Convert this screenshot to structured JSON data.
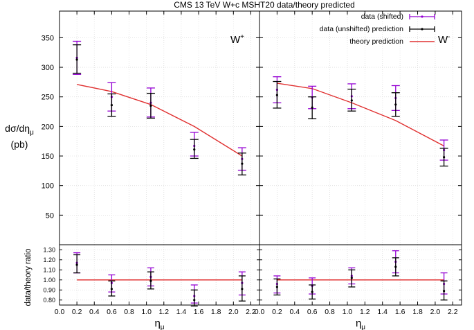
{
  "chart_data": {
    "type": "scatter",
    "title": "CMS 13 TeV W+c MSHT20 data/theory predicted",
    "xlabel": "ημ",
    "ylabel_line1": "dσ/dημ",
    "ylabel_line2": "(pb)",
    "ratio_ylabel": "data/theory ratio",
    "xlim": [
      0.0,
      2.3
    ],
    "ylim": [
      0,
      395
    ],
    "ratio_ylim": [
      0.75,
      1.35
    ],
    "x_ticks": [
      "0.0",
      "0.2",
      "0.4",
      "0.6",
      "0.8",
      "1.0",
      "1.2",
      "1.4",
      "1.6",
      "1.8",
      "2.0",
      "2.2"
    ],
    "y_ticks": [
      "50",
      "100",
      "150",
      "200",
      "250",
      "300",
      "350"
    ],
    "ratio_y_ticks": [
      "0.80",
      "0.90",
      "1.00",
      "1.10",
      "1.20",
      "1.30"
    ],
    "legend": {
      "position": "top-center",
      "entries": [
        "data (shifted)",
        "data (unshifted) prediction",
        "theory prediction"
      ]
    },
    "colors": {
      "shifted": "#9400d3",
      "unshifted": "#000000",
      "theory": "#e03030",
      "grid": "#dddddd"
    },
    "panels": [
      {
        "label_base": "W",
        "label_sup": "+",
        "theory": {
          "x": [
            0.2,
            0.6,
            1.05,
            1.55,
            2.1
          ],
          "y": [
            271,
            259,
            237,
            200,
            150
          ]
        },
        "shifted": [
          {
            "x": 0.2,
            "y": 316,
            "lo": 288,
            "hi": 344
          },
          {
            "x": 0.6,
            "y": 250,
            "lo": 226,
            "hi": 274
          },
          {
            "x": 1.05,
            "y": 240,
            "lo": 216,
            "hi": 265
          },
          {
            "x": 1.55,
            "y": 167,
            "lo": 150,
            "hi": 190
          },
          {
            "x": 2.1,
            "y": 145,
            "lo": 126,
            "hi": 164
          }
        ],
        "unshifted": [
          {
            "x": 0.2,
            "y": 313,
            "lo": 290,
            "hi": 338
          },
          {
            "x": 0.6,
            "y": 236,
            "lo": 217,
            "hi": 255
          },
          {
            "x": 1.05,
            "y": 235,
            "lo": 214,
            "hi": 256
          },
          {
            "x": 1.55,
            "y": 161,
            "lo": 146,
            "hi": 178
          },
          {
            "x": 2.1,
            "y": 137,
            "lo": 118,
            "hi": 155
          }
        ],
        "ratio_shifted": [
          {
            "x": 0.2,
            "y": 1.17,
            "lo": 1.07,
            "hi": 1.27
          },
          {
            "x": 0.6,
            "y": 0.97,
            "lo": 0.88,
            "hi": 1.05
          },
          {
            "x": 1.05,
            "y": 1.03,
            "lo": 0.94,
            "hi": 1.12
          },
          {
            "x": 1.55,
            "y": 0.84,
            "lo": 0.77,
            "hi": 0.95
          },
          {
            "x": 2.1,
            "y": 0.97,
            "lo": 0.85,
            "hi": 1.08
          }
        ],
        "ratio_unshifted": [
          {
            "x": 0.2,
            "y": 1.15,
            "lo": 1.07,
            "hi": 1.25
          },
          {
            "x": 0.6,
            "y": 0.91,
            "lo": 0.84,
            "hi": 0.99
          },
          {
            "x": 1.05,
            "y": 0.99,
            "lo": 0.91,
            "hi": 1.08
          },
          {
            "x": 1.55,
            "y": 0.8,
            "lo": 0.74,
            "hi": 0.9
          },
          {
            "x": 2.1,
            "y": 0.91,
            "lo": 0.79,
            "hi": 1.04
          }
        ]
      },
      {
        "label_base": "W",
        "label_sup": "-",
        "theory": {
          "x": [
            0.2,
            0.6,
            1.05,
            1.55,
            2.1
          ],
          "y": [
            273,
            264,
            240,
            210,
            167
          ]
        },
        "shifted": [
          {
            "x": 0.2,
            "y": 262,
            "lo": 240,
            "hi": 284
          },
          {
            "x": 0.6,
            "y": 249,
            "lo": 230,
            "hi": 268
          },
          {
            "x": 1.05,
            "y": 251,
            "lo": 230,
            "hi": 272
          },
          {
            "x": 1.55,
            "y": 248,
            "lo": 227,
            "hi": 269
          },
          {
            "x": 2.1,
            "y": 160,
            "lo": 143,
            "hi": 177
          }
        ],
        "unshifted": [
          {
            "x": 0.2,
            "y": 253,
            "lo": 231,
            "hi": 276
          },
          {
            "x": 0.6,
            "y": 232,
            "lo": 213,
            "hi": 250
          },
          {
            "x": 1.05,
            "y": 244,
            "lo": 226,
            "hi": 263
          },
          {
            "x": 1.55,
            "y": 237,
            "lo": 217,
            "hi": 257
          },
          {
            "x": 2.1,
            "y": 148,
            "lo": 133,
            "hi": 163
          }
        ],
        "ratio_shifted": [
          {
            "x": 0.2,
            "y": 0.96,
            "lo": 0.87,
            "hi": 1.04
          },
          {
            "x": 0.6,
            "y": 0.94,
            "lo": 0.86,
            "hi": 1.02
          },
          {
            "x": 1.05,
            "y": 1.04,
            "lo": 0.96,
            "hi": 1.12
          },
          {
            "x": 1.55,
            "y": 1.18,
            "lo": 1.07,
            "hi": 1.29
          },
          {
            "x": 2.1,
            "y": 0.96,
            "lo": 0.86,
            "hi": 1.07
          }
        ],
        "ratio_unshifted": [
          {
            "x": 0.2,
            "y": 0.93,
            "lo": 0.85,
            "hi": 1.01
          },
          {
            "x": 0.6,
            "y": 0.88,
            "lo": 0.81,
            "hi": 0.95
          },
          {
            "x": 1.05,
            "y": 1.02,
            "lo": 0.93,
            "hi": 1.1
          },
          {
            "x": 1.55,
            "y": 1.13,
            "lo": 1.04,
            "hi": 1.22
          },
          {
            "x": 2.1,
            "y": 0.89,
            "lo": 0.8,
            "hi": 0.99
          }
        ]
      }
    ]
  }
}
